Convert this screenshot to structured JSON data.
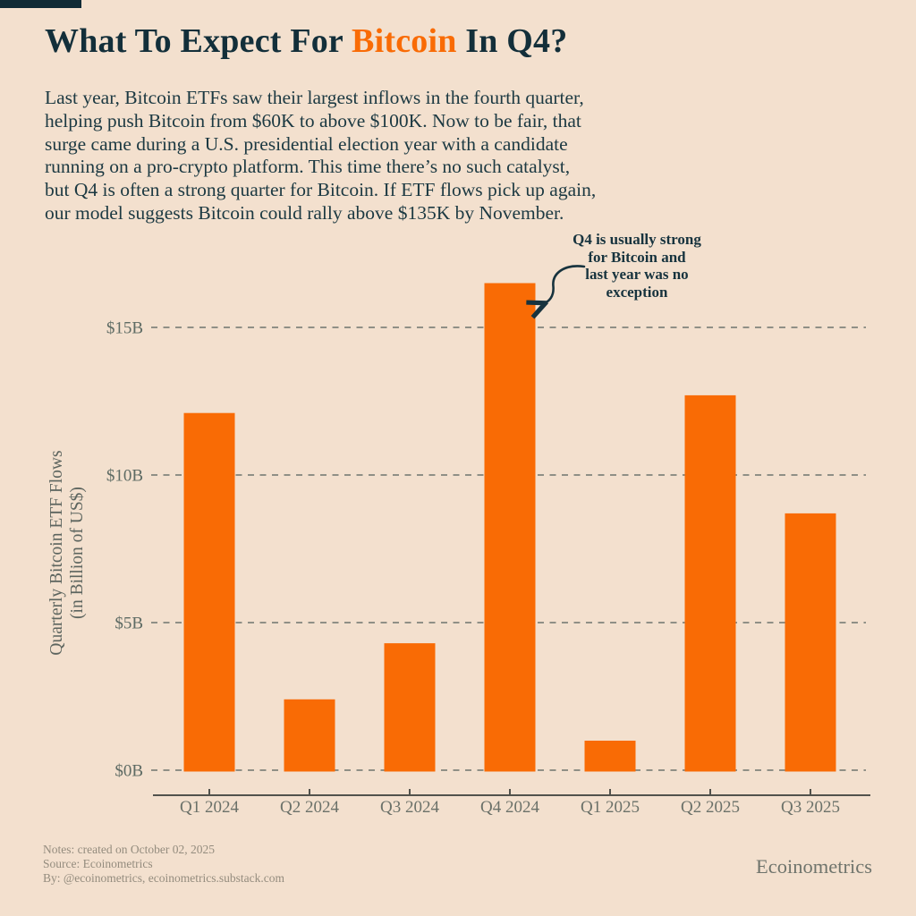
{
  "page": {
    "background_color": "#F3E0CE",
    "accent_color": "#F96B05",
    "ink_color": "#132F3A",
    "brand_tab_color": "#102B36"
  },
  "header": {
    "title_prefix": "What To Expect For ",
    "title_highlight": "Bitcoin",
    "title_suffix": " In Q4?"
  },
  "intro": {
    "lines": [
      "Last year, Bitcoin ETFs saw their largest inflows in the fourth quarter,",
      "helping push Bitcoin from $60K to above $100K. Now to be fair, that",
      "surge came during a U.S. presidential election year with a candidate",
      "running on a pro-crypto platform. This time there’s no such catalyst,",
      "but Q4 is often a strong quarter for Bitcoin. If ETF flows pick up again,",
      "our model suggests Bitcoin could rally above $135K by November."
    ]
  },
  "chart_data": {
    "type": "bar",
    "title": "",
    "categories": [
      "Q1 2024",
      "Q2 2024",
      "Q3 2024",
      "Q4 2024",
      "Q1 2025",
      "Q2 2025",
      "Q3 2025"
    ],
    "values": [
      12.1,
      2.4,
      4.3,
      16.5,
      1.0,
      12.7,
      8.7
    ],
    "unit": "billion US$",
    "ylabel_line1": "Quarterly Bitcoin ETF Flows",
    "ylabel_line2": "(in Billion of US$)",
    "yticks": [
      0,
      5,
      10,
      15
    ],
    "ytick_labels": [
      "$0B",
      "$5B",
      "$10B",
      "$15B"
    ],
    "ylim": [
      0,
      16.6
    ],
    "grid": "horizontal dashed",
    "legend": "none",
    "bar_color": "#F96B05",
    "gridline_color": "#8F8F86",
    "axis_color": "#52524C",
    "annotation": {
      "lines": [
        "Q4 is usually strong",
        "for Bitcoin and",
        "last year was no",
        "exception"
      ],
      "points_to": "Q4 2024"
    }
  },
  "footer": {
    "notes_line1": "Notes: created on October 02, 2025",
    "notes_line2": "Source: Ecoinometrics",
    "notes_line3": "By: @ecoinometrics, ecoinometrics.substack.com",
    "brand": "Ecoinometrics"
  }
}
